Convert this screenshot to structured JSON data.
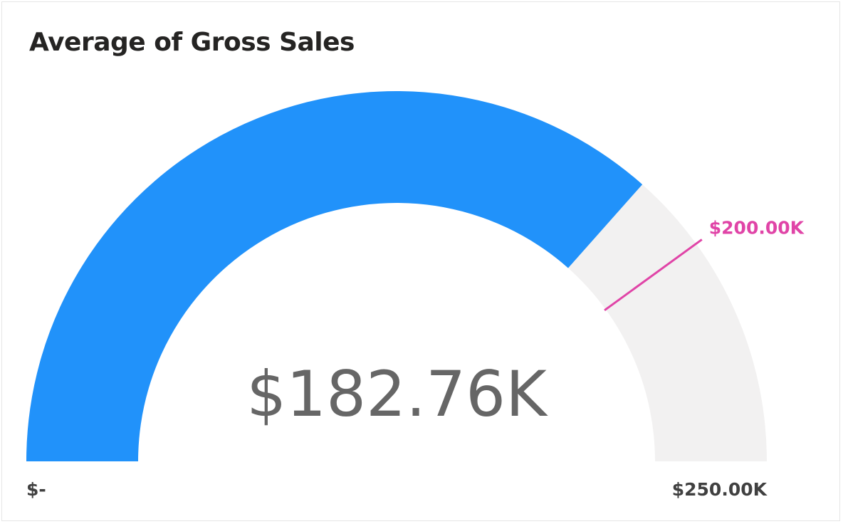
{
  "colors": {
    "fill": "#2192FA",
    "track": "#F2F1F1",
    "target": "#E044A7",
    "value_text": "#666666",
    "tick_text": "#404040",
    "title_text": "#252423"
  },
  "chart_data": {
    "type": "gauge",
    "title": "Average of Gross Sales",
    "value": 182760,
    "value_label": "$182.76K",
    "min": 0,
    "min_label": "$-",
    "max": 250000,
    "max_label": "$250.00K",
    "target": 200000,
    "target_label": "$200.00K"
  }
}
